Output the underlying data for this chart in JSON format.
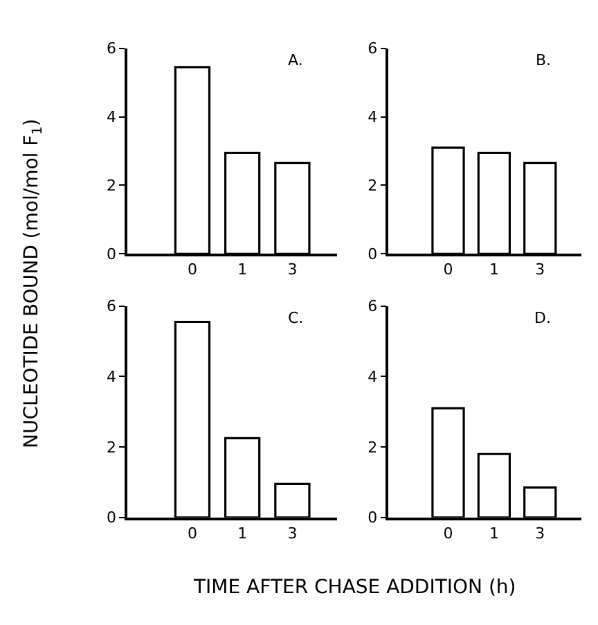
{
  "chart_data": [
    {
      "type": "bar",
      "title": "A.",
      "ylabel": "NUCLEOTIDE BOUND (mol/mol F$_{1}$)",
      "categories": [
        "0",
        "1",
        "3"
      ],
      "values": [
        5.45,
        2.95,
        2.65
      ],
      "color": "#ffffff",
      "ylim": [
        0,
        6
      ],
      "yticks": [
        0,
        2,
        4,
        6
      ]
    },
    {
      "type": "bar",
      "title": "B.",
      "categories": [
        "0",
        "1",
        "3"
      ],
      "values": [
        3.1,
        2.95,
        2.65
      ],
      "color": "#ffffff",
      "ylim": [
        0,
        6
      ],
      "yticks": [
        0,
        2,
        4,
        6
      ]
    },
    {
      "type": "bar",
      "title": "C.",
      "xlabel": "TIME AFTER CHASE ADDITION (h)",
      "categories": [
        "0",
        "1",
        "3"
      ],
      "values": [
        5.55,
        2.25,
        0.95
      ],
      "color": "#ffffff",
      "ylim": [
        0,
        6
      ],
      "yticks": [
        0,
        2,
        4,
        6
      ]
    },
    {
      "type": "bar",
      "title": "D.",
      "categories": [
        "0",
        "1",
        "3"
      ],
      "values": [
        3.1,
        1.8,
        0.85
      ],
      "color": "#ffffff",
      "ylim": [
        0,
        6
      ],
      "yticks": [
        0,
        2,
        4,
        6
      ]
    }
  ]
}
